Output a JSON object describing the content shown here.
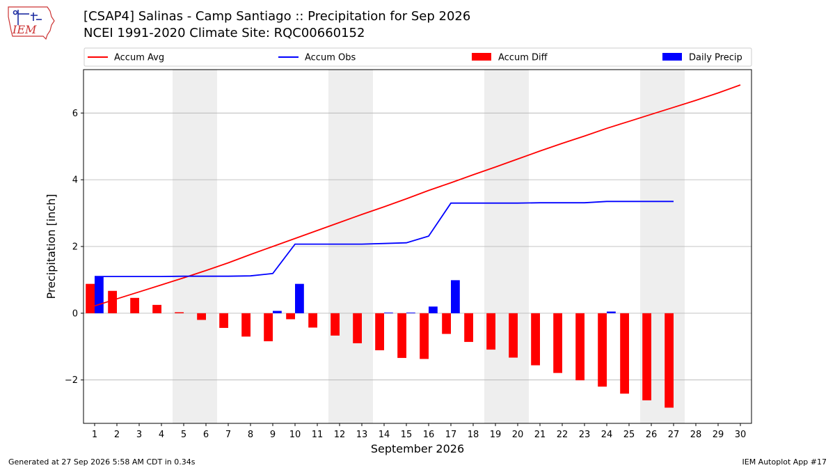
{
  "header": {
    "title_line1": "[CSAP4] Salinas - Camp Santiago :: Precipitation for Sep 2026",
    "title_line2": "NCEI 1991-2020 Climate Site: RQC00660152",
    "logo_text": "IEM"
  },
  "footer": {
    "generated": "Generated at 27 Sep 2026 5:58 AM CDT in 0.34s",
    "app": "IEM Autoplot App #17"
  },
  "colors": {
    "accum_avg": "#ff0000",
    "accum_obs": "#0000ff",
    "accum_diff": "#ff0000",
    "daily_precip": "#0000ff",
    "weekend_shade": "#eeeeee",
    "grid": "#b0b0b0"
  },
  "chart_data": {
    "type": "bar",
    "xlabel": "September 2026",
    "ylabel": "Precipitation [inch]",
    "x": [
      1,
      2,
      3,
      4,
      5,
      6,
      7,
      8,
      9,
      10,
      11,
      12,
      13,
      14,
      15,
      16,
      17,
      18,
      19,
      20,
      21,
      22,
      23,
      24,
      25,
      26,
      27,
      28,
      29,
      30
    ],
    "xlim": [
      0.5,
      30.5
    ],
    "ylim": [
      -3.3,
      7.3
    ],
    "yticks": [
      -2,
      0,
      2,
      4,
      6
    ],
    "ytick_labels": [
      "−2",
      "0",
      "2",
      "4",
      "6"
    ],
    "grid": "horizontal",
    "legend_position": "top",
    "weekend_shading": [
      [
        4.5,
        6.5
      ],
      [
        11.5,
        13.5
      ],
      [
        18.5,
        20.5
      ],
      [
        25.5,
        27.5
      ]
    ],
    "series": [
      {
        "name": "Accum Avg",
        "kind": "line",
        "x": [
          1,
          2,
          3,
          4,
          5,
          6,
          7,
          8,
          9,
          10,
          11,
          12,
          13,
          14,
          15,
          16,
          17,
          18,
          19,
          20,
          21,
          22,
          23,
          24,
          25,
          26,
          27,
          28,
          29,
          30
        ],
        "values": [
          0.22,
          0.43,
          0.64,
          0.85,
          1.06,
          1.28,
          1.51,
          1.76,
          2.0,
          2.24,
          2.48,
          2.72,
          2.96,
          3.19,
          3.43,
          3.68,
          3.91,
          4.15,
          4.38,
          4.62,
          4.86,
          5.09,
          5.31,
          5.54,
          5.75,
          5.96,
          6.17,
          6.38,
          6.6,
          6.84
        ]
      },
      {
        "name": "Accum Obs",
        "kind": "line",
        "x": [
          1,
          2,
          3,
          4,
          5,
          6,
          7,
          8,
          9,
          10,
          11,
          12,
          13,
          14,
          15,
          16,
          17,
          18,
          19,
          20,
          21,
          22,
          23,
          24,
          25,
          26,
          27
        ],
        "values": [
          1.1,
          1.1,
          1.1,
          1.1,
          1.11,
          1.11,
          1.11,
          1.12,
          1.19,
          2.07,
          2.07,
          2.07,
          2.07,
          2.09,
          2.11,
          2.31,
          3.3,
          3.3,
          3.3,
          3.3,
          3.31,
          3.31,
          3.31,
          3.35,
          3.35,
          3.35,
          3.35
        ]
      },
      {
        "name": "Accum Diff",
        "kind": "bar",
        "x": [
          1,
          2,
          3,
          4,
          5,
          6,
          7,
          8,
          9,
          10,
          11,
          12,
          13,
          14,
          15,
          16,
          17,
          18,
          19,
          20,
          21,
          22,
          23,
          24,
          25,
          26,
          27
        ],
        "values": [
          0.88,
          0.67,
          0.46,
          0.25,
          0.03,
          -0.2,
          -0.44,
          -0.7,
          -0.84,
          -0.18,
          -0.43,
          -0.67,
          -0.9,
          -1.11,
          -1.34,
          -1.37,
          -0.62,
          -0.86,
          -1.09,
          -1.33,
          -1.56,
          -1.79,
          -2.01,
          -2.2,
          -2.41,
          -2.61,
          -2.83
        ]
      },
      {
        "name": "Daily Precip",
        "kind": "bar",
        "x": [
          1,
          2,
          3,
          4,
          5,
          6,
          7,
          8,
          9,
          10,
          11,
          12,
          13,
          14,
          15,
          16,
          17,
          18,
          19,
          20,
          21,
          22,
          23,
          24,
          25,
          26,
          27
        ],
        "values": [
          1.1,
          0,
          0,
          0,
          0,
          0,
          0,
          0,
          0.07,
          0.88,
          0,
          0,
          0,
          0.02,
          0.02,
          0.2,
          0.99,
          0,
          0,
          0,
          0,
          0,
          0,
          0.05,
          0,
          0,
          0
        ]
      }
    ]
  }
}
